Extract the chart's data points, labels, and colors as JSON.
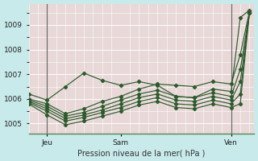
{
  "xlabel": "Pression niveau de la mer( hPa )",
  "outer_bg": "#c8eaea",
  "plot_bg": "#e8d8d8",
  "grid_color": "#ffffff",
  "vline_color": "#666666",
  "line_color": "#2d5a2d",
  "yticks": [
    1005,
    1006,
    1007,
    1008,
    1009
  ],
  "ylim": [
    1004.6,
    1009.85
  ],
  "xlim": [
    0.0,
    49.0
  ],
  "xtick_positions": [
    4,
    20,
    44
  ],
  "xtick_labels": [
    "Jeu",
    "Sam",
    "Ven"
  ],
  "vlines": [
    4,
    44
  ],
  "series": [
    {
      "x": [
        0,
        4,
        8,
        12,
        16,
        20,
        24,
        28,
        32,
        36,
        40,
        44,
        46,
        48
      ],
      "y": [
        1006.2,
        1005.95,
        1006.5,
        1007.05,
        1006.75,
        1006.55,
        1006.7,
        1006.55,
        1006.1,
        1006.05,
        1006.4,
        1006.3,
        1009.3,
        1009.6
      ]
    },
    {
      "x": [
        0,
        4,
        8,
        12,
        16,
        20,
        24,
        28,
        32,
        36,
        40,
        44,
        46,
        48
      ],
      "y": [
        1006.0,
        1005.8,
        1005.4,
        1005.6,
        1005.9,
        1006.1,
        1006.4,
        1006.6,
        1006.55,
        1006.5,
        1006.7,
        1006.6,
        1007.8,
        1009.55
      ]
    },
    {
      "x": [
        0,
        4,
        8,
        12,
        16,
        20,
        24,
        28,
        32,
        36,
        40,
        44,
        46,
        48
      ],
      "y": [
        1005.95,
        1005.7,
        1005.3,
        1005.45,
        1005.7,
        1005.95,
        1006.2,
        1006.35,
        1006.1,
        1006.05,
        1006.25,
        1006.1,
        1007.2,
        1009.5
      ]
    },
    {
      "comment": "middle",
      "x": [
        0,
        4,
        8,
        12,
        16,
        20,
        24,
        28,
        32,
        36,
        40,
        44,
        46,
        48
      ],
      "y": [
        1005.9,
        1005.6,
        1005.2,
        1005.35,
        1005.55,
        1005.8,
        1006.05,
        1006.2,
        1005.95,
        1005.9,
        1006.1,
        1005.95,
        1006.7,
        1009.5
      ]
    },
    {
      "x": [
        0,
        4,
        8,
        12,
        16,
        20,
        24,
        28,
        32,
        36,
        40,
        44,
        46,
        48
      ],
      "y": [
        1005.85,
        1005.5,
        1005.1,
        1005.25,
        1005.45,
        1005.65,
        1005.9,
        1006.05,
        1005.8,
        1005.75,
        1005.95,
        1005.8,
        1006.2,
        1009.5
      ]
    },
    {
      "x": [
        0,
        4,
        8,
        12,
        16,
        20,
        24,
        28,
        32,
        36,
        40,
        44,
        46,
        48
      ],
      "y": [
        1005.8,
        1005.35,
        1004.95,
        1005.1,
        1005.3,
        1005.5,
        1005.75,
        1005.9,
        1005.65,
        1005.6,
        1005.8,
        1005.65,
        1005.8,
        1009.5
      ]
    }
  ]
}
